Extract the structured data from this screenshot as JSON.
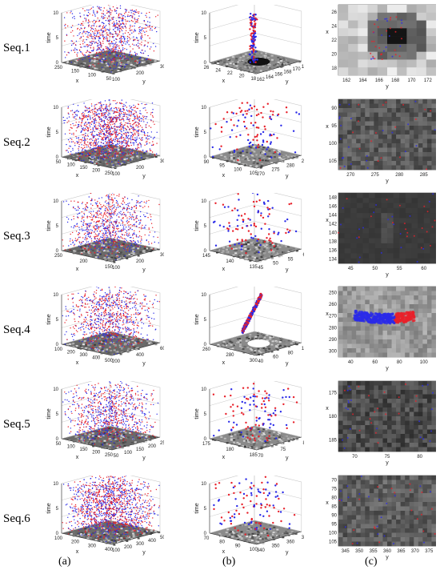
{
  "figure": {
    "rows": [
      {
        "label": "Seq.1",
        "a": {
          "z_label": "time",
          "x_label": "x",
          "y_label": "y",
          "z_ticks": [
            "10",
            "5",
            "0"
          ],
          "x_ticks": [
            "250",
            "150",
            "100",
            "50"
          ],
          "y_ticks": [
            "100",
            "200",
            "300"
          ]
        },
        "b": {
          "z_label": "time",
          "x_label": "x",
          "y_label": "y",
          "z_ticks": [
            "10",
            "5",
            "0"
          ],
          "x_ticks": [
            "26",
            "24",
            "22",
            "20",
            "18"
          ],
          "y_ticks": [
            "162",
            "164",
            "166",
            "168",
            "170",
            "172"
          ]
        },
        "c": {
          "x_label": "y",
          "y_label": "x",
          "x_ticks": [
            "162",
            "164",
            "166",
            "168",
            "170",
            "172"
          ],
          "y_ticks": [
            "26",
            "24",
            "22",
            "20",
            "18"
          ],
          "bg": "#9c9c9c"
        }
      },
      {
        "label": "Seq.2",
        "a": {
          "z_label": "time",
          "x_label": "x",
          "y_label": "y",
          "z_ticks": [
            "10",
            "5",
            "0"
          ],
          "x_ticks": [
            "50",
            "100",
            "150",
            "200",
            "250"
          ],
          "y_ticks": [
            "100",
            "200",
            "300"
          ]
        },
        "b": {
          "z_label": "time",
          "x_label": "x",
          "y_label": "y",
          "z_ticks": [
            "10",
            "5",
            "0"
          ],
          "x_ticks": [
            "90",
            "95",
            "100",
            "105"
          ],
          "y_ticks": [
            "270",
            "275",
            "280",
            "285"
          ]
        },
        "c": {
          "x_label": "y",
          "y_label": "x",
          "x_ticks": [
            "270",
            "275",
            "280",
            "285"
          ],
          "y_ticks": [
            "90",
            "95",
            "100",
            "105"
          ],
          "bg": "#5a5a5a"
        }
      },
      {
        "label": "Seq.3",
        "a": {
          "z_label": "time",
          "x_label": "x",
          "y_label": "y",
          "z_ticks": [
            "10",
            "5",
            "0"
          ],
          "x_ticks": [
            "250",
            "200",
            "150"
          ],
          "y_ticks": [
            "100",
            "200",
            "300"
          ]
        },
        "b": {
          "z_label": "time",
          "x_label": "x",
          "y_label": "y",
          "z_ticks": [
            "10",
            "5",
            "0"
          ],
          "x_ticks": [
            "145",
            "140",
            "135"
          ],
          "y_ticks": [
            "45",
            "50",
            "55",
            "60"
          ]
        },
        "c": {
          "x_label": "y",
          "y_label": "x",
          "x_ticks": [
            "45",
            "50",
            "55",
            "60"
          ],
          "y_ticks": [
            "148",
            "146",
            "144",
            "142",
            "140",
            "138",
            "136",
            "134"
          ],
          "bg": "#3a3a3a"
        }
      },
      {
        "label": "Seq.4",
        "a": {
          "z_label": "time",
          "x_label": "x",
          "y_label": "y",
          "z_ticks": [
            "10",
            "5",
            "0"
          ],
          "x_ticks": [
            "100",
            "200",
            "300",
            "400",
            "500"
          ],
          "y_ticks": [
            "200",
            "400",
            "600"
          ]
        },
        "b": {
          "z_label": "time",
          "x_label": "x",
          "y_label": "y",
          "z_ticks": [
            "10",
            "5",
            "0"
          ],
          "x_ticks": [
            "260",
            "280",
            "300"
          ],
          "y_ticks": [
            "40",
            "60",
            "80",
            "100"
          ]
        },
        "c": {
          "x_label": "y",
          "y_label": "x",
          "x_ticks": [
            "40",
            "60",
            "80",
            "100"
          ],
          "y_ticks": [
            "250",
            "260",
            "270",
            "280",
            "290",
            "300"
          ],
          "bg": "#9a9a9a"
        }
      },
      {
        "label": "Seq.5",
        "a": {
          "z_label": "time",
          "x_label": "x",
          "y_label": "y",
          "z_ticks": [
            "10",
            "5",
            "0"
          ],
          "x_ticks": [
            "50",
            "100",
            "150",
            "200",
            "250"
          ],
          "y_ticks": [
            "50",
            "100",
            "150",
            "200",
            "250"
          ]
        },
        "b": {
          "z_label": "time",
          "x_label": "x",
          "y_label": "y",
          "z_ticks": [
            "10",
            "5",
            "0"
          ],
          "x_ticks": [
            "175",
            "180",
            "185"
          ],
          "y_ticks": [
            "70",
            "75",
            "80"
          ]
        },
        "c": {
          "x_label": "y",
          "y_label": "x",
          "x_ticks": [
            "70",
            "75",
            "80"
          ],
          "y_ticks": [
            "175",
            "180",
            "185"
          ],
          "bg": "#4c4c4c"
        }
      },
      {
        "label": "Seq.6",
        "a": {
          "z_label": "time",
          "x_label": "x",
          "y_label": "y",
          "z_ticks": [
            "10",
            "5",
            "0"
          ],
          "x_ticks": [
            "100",
            "200",
            "300",
            "400"
          ],
          "y_ticks": [
            "100",
            "200",
            "300",
            "400",
            "500"
          ]
        },
        "b": {
          "z_label": "time",
          "x_label": "x",
          "y_label": "y",
          "z_ticks": [
            "10",
            "5",
            "0"
          ],
          "x_ticks": [
            "70",
            "80",
            "90",
            "100"
          ],
          "y_ticks": [
            "340",
            "350",
            "360",
            "370"
          ]
        },
        "c": {
          "x_label": "y",
          "y_label": "x",
          "x_ticks": [
            "345",
            "350",
            "355",
            "360",
            "365",
            "370",
            "375"
          ],
          "y_ticks": [
            "70",
            "75",
            "80",
            "85",
            "90",
            "95",
            "100",
            "105"
          ],
          "bg": "#5e5e5e"
        }
      }
    ],
    "column_labels": [
      "(a)",
      "(b)",
      "(c)"
    ],
    "colors": {
      "positive_events": "#e8202a",
      "negative_events": "#2a2ae8",
      "axis": "#333333",
      "grid": "#c8c8c8"
    }
  }
}
